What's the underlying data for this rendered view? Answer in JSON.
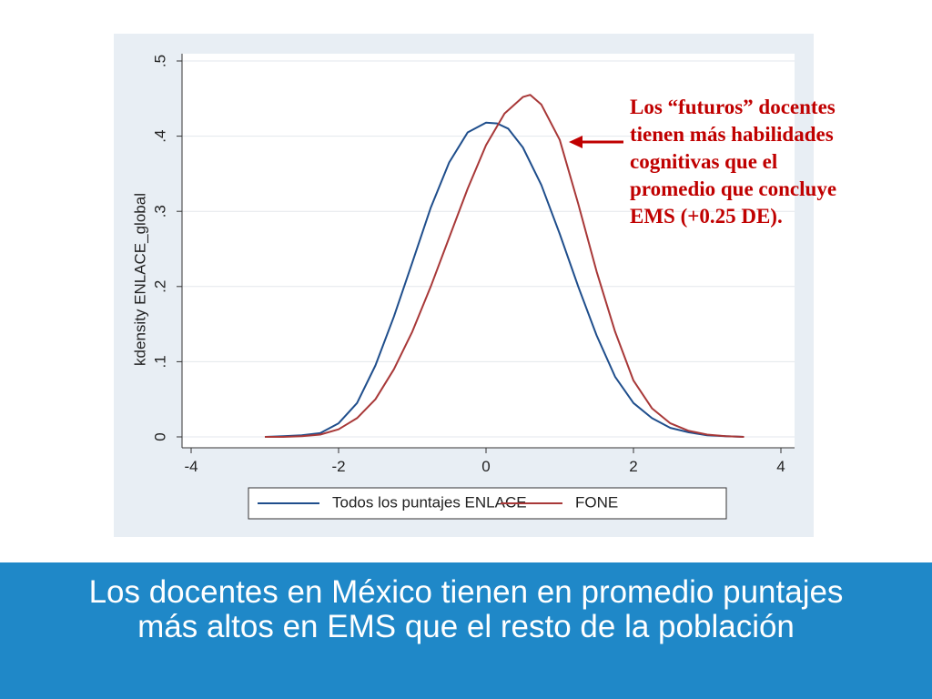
{
  "slide": {
    "title_lines": [
      "Los docentes en México tienen en promedio puntajes",
      "más altos en EMS que el resto de la población"
    ],
    "annotation_lines": [
      "Los “futuros” docentes",
      "tienen más habilidades",
      "cognitivas que el",
      "promedio que concluye",
      "EMS (+0.25 DE)."
    ],
    "colors": {
      "band": "#1f88c8",
      "annotation": "#c00000",
      "panel_bg": "#e8eef4"
    }
  },
  "chart_data": {
    "type": "line",
    "ylabel": "kdensity ENLACE_global",
    "xlabel": "",
    "xlim": [
      -4,
      4
    ],
    "ylim": [
      0,
      0.5
    ],
    "x_ticks": [
      "-4",
      "-2",
      "0",
      "2",
      "4"
    ],
    "y_ticks": [
      "0",
      ".1",
      ".2",
      ".3",
      ".4",
      ".5"
    ],
    "grid": "horizontal",
    "legend_position": "bottom",
    "series": [
      {
        "name": "Todos los puntajes ENLACE",
        "color": "#1f4e8c",
        "x": [
          -3.0,
          -2.75,
          -2.5,
          -2.25,
          -2.0,
          -1.75,
          -1.5,
          -1.25,
          -1.0,
          -0.75,
          -0.5,
          -0.25,
          0.0,
          0.15,
          0.3,
          0.5,
          0.75,
          1.0,
          1.25,
          1.5,
          1.75,
          2.0,
          2.25,
          2.5,
          2.75,
          3.0,
          3.25,
          3.5
        ],
        "y": [
          0.0,
          0.001,
          0.002,
          0.005,
          0.018,
          0.045,
          0.095,
          0.16,
          0.232,
          0.305,
          0.365,
          0.405,
          0.418,
          0.417,
          0.41,
          0.385,
          0.335,
          0.27,
          0.2,
          0.135,
          0.08,
          0.045,
          0.025,
          0.012,
          0.006,
          0.002,
          0.001,
          0.0
        ]
      },
      {
        "name": "FONE",
        "color": "#a83838",
        "x": [
          -3.0,
          -2.75,
          -2.5,
          -2.25,
          -2.0,
          -1.75,
          -1.5,
          -1.25,
          -1.0,
          -0.75,
          -0.5,
          -0.25,
          0.0,
          0.25,
          0.5,
          0.6,
          0.75,
          1.0,
          1.25,
          1.5,
          1.75,
          2.0,
          2.25,
          2.5,
          2.75,
          3.0,
          3.25,
          3.5
        ],
        "y": [
          0.0,
          0.0,
          0.001,
          0.003,
          0.01,
          0.025,
          0.05,
          0.09,
          0.14,
          0.2,
          0.265,
          0.33,
          0.388,
          0.43,
          0.452,
          0.455,
          0.442,
          0.395,
          0.31,
          0.22,
          0.14,
          0.075,
          0.038,
          0.018,
          0.008,
          0.003,
          0.001,
          0.0
        ]
      }
    ]
  }
}
